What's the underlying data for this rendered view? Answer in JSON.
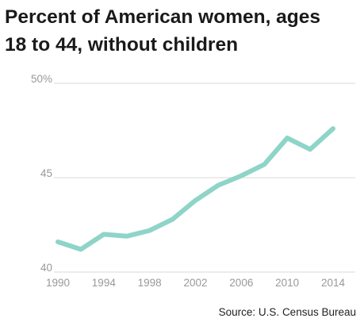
{
  "title_lines": [
    "Percent of American women, ages",
    "18 to 44, without children"
  ],
  "source": "Source: U.S. Census Bureau",
  "colors": {
    "line": "#8ed4c9",
    "grid": "#d9d9d9",
    "tick_text": "#999999"
  },
  "chart_data": {
    "type": "line",
    "title": "Percent of American women, ages 18 to 44, without children",
    "xlabel": "",
    "ylabel": "",
    "grid": true,
    "ylim": [
      40,
      50
    ],
    "yticks": [
      40,
      45,
      50
    ],
    "ytick_labels": [
      "40",
      "45",
      "50%"
    ],
    "xticks": [
      1990,
      1994,
      1998,
      2002,
      2006,
      2010,
      2014
    ],
    "xlim": [
      1990,
      2014
    ],
    "series": [
      {
        "x": [
          1990,
          1992,
          1994,
          1996,
          1998,
          2000,
          2002,
          2004,
          2006,
          2008,
          2010,
          2012,
          2014
        ],
        "values": [
          41.6,
          41.2,
          42.0,
          41.9,
          42.2,
          42.8,
          43.8,
          44.6,
          45.1,
          45.7,
          47.1,
          46.5,
          47.6
        ]
      }
    ]
  }
}
